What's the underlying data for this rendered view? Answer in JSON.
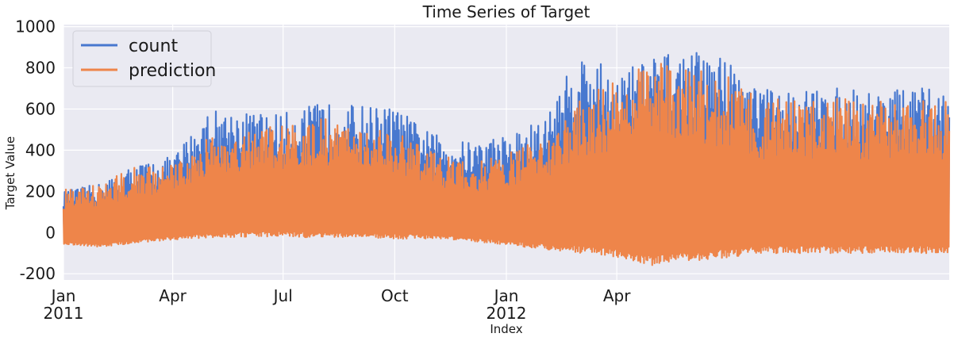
{
  "chart_data": {
    "type": "line",
    "title": "Time Series of Target",
    "xlabel": "Index",
    "ylabel": "Target Value",
    "x_range": [
      "2011-01-01",
      "2012-12-31"
    ],
    "ylim": [
      -230,
      1010
    ],
    "grid": true,
    "legend_position": "top-left",
    "y_ticks": [
      -200,
      0,
      200,
      400,
      600,
      800,
      1000
    ],
    "x_ticks": [
      {
        "date": "2011-01-01",
        "label": "Jan",
        "sublabel": "2011"
      },
      {
        "date": "2011-04-01",
        "label": "Apr",
        "sublabel": ""
      },
      {
        "date": "2011-07-01",
        "label": "Jul",
        "sublabel": ""
      },
      {
        "date": "2011-10-01",
        "label": "Oct",
        "sublabel": ""
      },
      {
        "date": "2012-01-01",
        "label": "Jan",
        "sublabel": "2012"
      },
      {
        "date": "2012-04-01",
        "label": "Apr",
        "sublabel": ""
      }
    ],
    "series": [
      {
        "name": "count",
        "color": "#4878cf",
        "envelope": [
          {
            "date": "2011-01-01",
            "low": 0,
            "high": 200
          },
          {
            "date": "2011-02-01",
            "low": 0,
            "high": 240
          },
          {
            "date": "2011-03-01",
            "low": 0,
            "high": 330
          },
          {
            "date": "2011-04-01",
            "low": 0,
            "high": 370
          },
          {
            "date": "2011-05-01",
            "low": 0,
            "high": 600
          },
          {
            "date": "2011-06-01",
            "low": 0,
            "high": 590
          },
          {
            "date": "2011-07-01",
            "low": 0,
            "high": 580
          },
          {
            "date": "2011-08-01",
            "low": 0,
            "high": 630
          },
          {
            "date": "2011-09-01",
            "low": 0,
            "high": 620
          },
          {
            "date": "2011-10-01",
            "low": 0,
            "high": 610
          },
          {
            "date": "2011-11-01",
            "low": 0,
            "high": 480
          },
          {
            "date": "2011-12-01",
            "low": 0,
            "high": 440
          },
          {
            "date": "2012-01-01",
            "low": 0,
            "high": 480
          },
          {
            "date": "2012-02-01",
            "low": 0,
            "high": 550
          },
          {
            "date": "2012-03-01",
            "low": 0,
            "high": 880
          },
          {
            "date": "2012-04-01",
            "low": 0,
            "high": 780
          },
          {
            "date": "2012-05-01",
            "low": 0,
            "high": 860
          },
          {
            "date": "2012-06-01",
            "low": 0,
            "high": 880
          },
          {
            "date": "2012-07-01",
            "low": 0,
            "high": 860
          },
          {
            "date": "2012-07-31",
            "low": 0,
            "high": 700
          }
        ]
      },
      {
        "name": "prediction",
        "color": "#ee854a",
        "envelope": [
          {
            "date": "2011-01-01",
            "low": -55,
            "high": 210
          },
          {
            "date": "2011-02-01",
            "low": -70,
            "high": 240
          },
          {
            "date": "2011-03-01",
            "low": -50,
            "high": 320
          },
          {
            "date": "2011-04-01",
            "low": -35,
            "high": 330
          },
          {
            "date": "2011-05-01",
            "low": -25,
            "high": 470
          },
          {
            "date": "2011-06-01",
            "low": -20,
            "high": 510
          },
          {
            "date": "2011-07-01",
            "low": -20,
            "high": 520
          },
          {
            "date": "2011-08-01",
            "low": -25,
            "high": 560
          },
          {
            "date": "2011-09-01",
            "low": -25,
            "high": 520
          },
          {
            "date": "2011-10-01",
            "low": -30,
            "high": 500
          },
          {
            "date": "2011-11-01",
            "low": -30,
            "high": 390
          },
          {
            "date": "2011-12-01",
            "low": -40,
            "high": 340
          },
          {
            "date": "2012-01-01",
            "low": -60,
            "high": 380
          },
          {
            "date": "2012-02-01",
            "low": -80,
            "high": 470
          },
          {
            "date": "2012-03-01",
            "low": -100,
            "high": 660
          },
          {
            "date": "2012-04-01",
            "low": -120,
            "high": 740
          },
          {
            "date": "2012-05-01",
            "low": -160,
            "high": 830
          },
          {
            "date": "2012-06-01",
            "low": -140,
            "high": 800
          },
          {
            "date": "2012-07-01",
            "low": -120,
            "high": 760
          },
          {
            "date": "2012-07-31",
            "low": -100,
            "high": 650
          }
        ]
      }
    ]
  }
}
